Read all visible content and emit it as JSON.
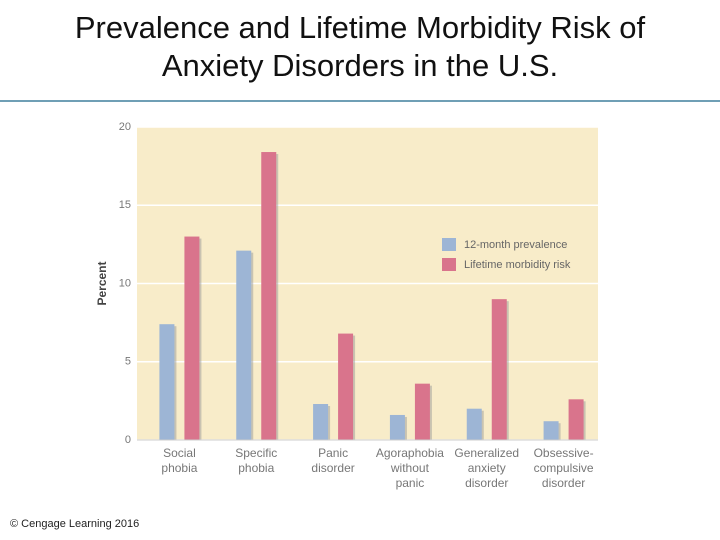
{
  "title": "Prevalence and Lifetime Morbidity Risk of\nAnxiety Disorders in the U.S.",
  "copyright": "© Cengage Learning 2016",
  "chart_data": {
    "type": "bar",
    "ylabel": "Percent",
    "categories": [
      "Social\nphobia",
      "Specific\nphobia",
      "Panic\ndisorder",
      "Agoraphobia\nwithout\npanic",
      "Generalized\nanxiety\ndisorder",
      "Obsessive-\ncompulsive\ndisorder"
    ],
    "series": [
      {
        "name": "12-month prevalence",
        "color": "#9db5d5",
        "values": [
          7.4,
          12.1,
          2.3,
          1.6,
          2.0,
          1.2
        ]
      },
      {
        "name": "Lifetime morbidity risk",
        "color": "#d9748c",
        "values": [
          13.0,
          18.4,
          6.8,
          3.6,
          9.0,
          2.6
        ]
      }
    ],
    "ylim": [
      0,
      20
    ],
    "yticks": [
      0,
      5,
      10,
      15,
      20
    ],
    "grid": true,
    "legend": "right"
  }
}
